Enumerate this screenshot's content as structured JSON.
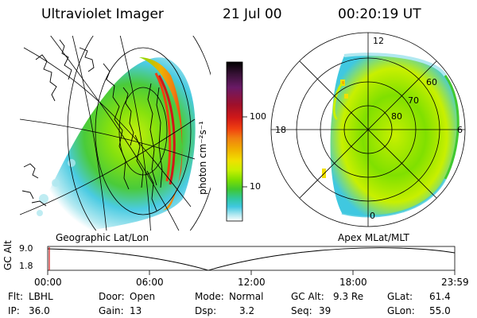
{
  "header": {
    "title": "Ultraviolet Imager",
    "date": "21 Jul 00",
    "time": "00:20:19 UT"
  },
  "colorbar": {
    "unit_label": "photon cm⁻²s⁻¹",
    "ticks": [
      "100",
      "10"
    ],
    "colors": [
      "#000000",
      "#3a1238",
      "#6a1a66",
      "#a0102a",
      "#d01818",
      "#f04010",
      "#f08010",
      "#f0b000",
      "#f0e000",
      "#c8f000",
      "#80e000",
      "#40c830",
      "#30c8a0",
      "#40c8e0",
      "#b0e8f0",
      "#ffffff"
    ]
  },
  "left_map": {
    "caption": "Geographic Lat/Lon"
  },
  "right_map": {
    "caption": "Apex MLat/MLT",
    "mlt_labels": [
      "12",
      "18",
      "6",
      "0"
    ],
    "mlat_labels": [
      "60",
      "70",
      "80"
    ]
  },
  "altitude_plot": {
    "ylabel": "GC Alt",
    "yticks": [
      "9.0",
      "1.8"
    ],
    "xticks": [
      "00:00",
      "06:00",
      "12:00",
      "18:00",
      "23:59"
    ]
  },
  "status": {
    "filter": {
      "label": "Flt:",
      "value": "LBHL"
    },
    "ip": {
      "label": "IP:",
      "value": "36.0"
    },
    "door": {
      "label": "Door:",
      "value": "Open"
    },
    "gain": {
      "label": "Gain:",
      "value": "13"
    },
    "mode": {
      "label": "Mode:",
      "value": "Normal"
    },
    "dsp": {
      "label": "Dsp:",
      "value": "3.2"
    },
    "gc_alt": {
      "label": "GC Alt:",
      "value": "9.3 Re"
    },
    "seq": {
      "label": "Seq:",
      "value": "39"
    },
    "glat": {
      "label": "GLat:",
      "value": "61.4"
    },
    "glon": {
      "label": "GLon:",
      "value": "55.0"
    }
  }
}
